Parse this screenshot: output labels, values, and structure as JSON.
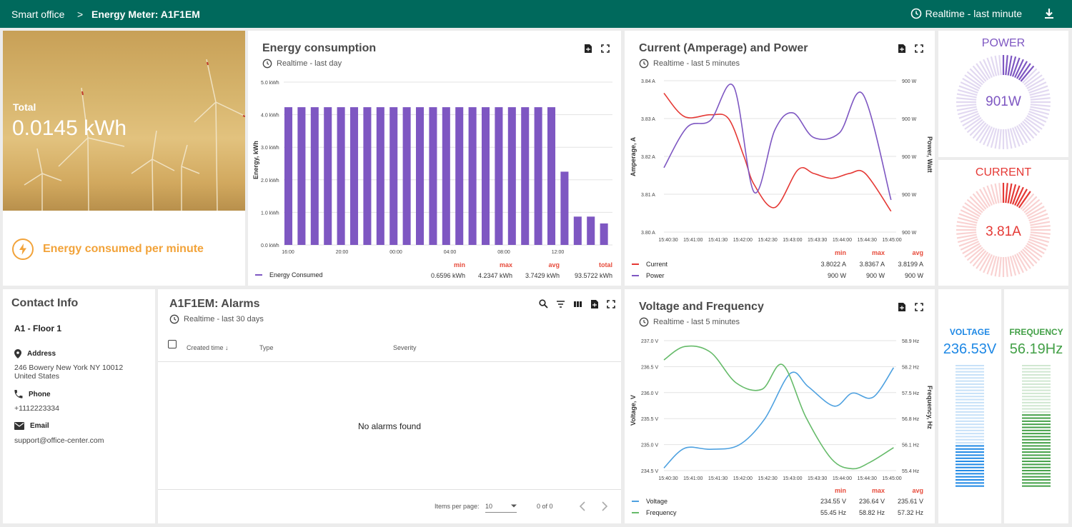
{
  "header": {
    "breadcrumb_home": "Smart office",
    "breadcrumb_sep": ">",
    "breadcrumb_current": "Energy Meter: A1F1EM",
    "timewindow": "Realtime - last minute"
  },
  "total": {
    "label": "Total",
    "value": "0.0145 kWh",
    "caption": "Energy consumed per minute"
  },
  "energy_chart": {
    "title": "Energy consumption",
    "timewindow": "Realtime - last day",
    "legend": {
      "name": "Energy Consumed",
      "min": "0.6596 kWh",
      "max": "4.2347 kWh",
      "avg": "3.7429 kWh",
      "total": "93.5722 kWh"
    },
    "headers": {
      "min": "min",
      "max": "max",
      "avg": "avg",
      "total": "total"
    }
  },
  "current_chart": {
    "title": "Current (Amperage) and Power",
    "timewindow": "Realtime - last 5 minutes",
    "headers": {
      "min": "min",
      "max": "max",
      "avg": "avg"
    },
    "legend": [
      {
        "name": "Current",
        "min": "3.8022 A",
        "max": "3.8367 A",
        "avg": "3.8199 A"
      },
      {
        "name": "Power",
        "min": "900 W",
        "max": "900 W",
        "avg": "900 W"
      }
    ]
  },
  "voltage_chart": {
    "title": "Voltage and Frequency",
    "timewindow": "Realtime - last 5 minutes",
    "headers": {
      "min": "min",
      "max": "max",
      "avg": "avg"
    },
    "legend": [
      {
        "name": "Voltage",
        "min": "234.55 V",
        "max": "236.64 V",
        "avg": "235.61 V"
      },
      {
        "name": "Frequency",
        "min": "55.45 Hz",
        "max": "58.82 Hz",
        "avg": "57.32 Hz"
      }
    ]
  },
  "gauges": {
    "power": {
      "title": "POWER",
      "value": "901W",
      "color": "#7e57c2"
    },
    "current": {
      "title": "CURRENT",
      "value": "3.81A",
      "color": "#e53935"
    }
  },
  "contact": {
    "title": "Contact Info",
    "location": "A1 - Floor 1",
    "address_label": "Address",
    "address_line1": "246 Bowery New York NY 10012",
    "address_line2": "United States",
    "phone_label": "Phone",
    "phone": "+1112223334",
    "email_label": "Email",
    "email": "support@office-center.com"
  },
  "alarms": {
    "title": "A1F1EM: Alarms",
    "timewindow": "Realtime - last 30 days",
    "columns": [
      "Created time ↓",
      "Type",
      "Severity"
    ],
    "empty_text": "No alarms found",
    "items_per_page_label": "Items per page:",
    "items_per_page": "10",
    "range_text": "0 of 0"
  },
  "bar_gauges": {
    "voltage": {
      "title": "VOLTAGE",
      "value": "236.53V",
      "color": "#1e88e5",
      "level": 0.35
    },
    "frequency": {
      "title": "FREQUENCY",
      "value": "56.19Hz",
      "color": "#43a047",
      "level": 0.6
    }
  },
  "chart_data": [
    {
      "type": "bar",
      "title": "Energy consumption",
      "ylabel": "Energy, kWh",
      "ylim": [
        0,
        5
      ],
      "yticks": [
        "0.0 kWh",
        "1.0 kWh",
        "2.0 kWh",
        "3.0 kWh",
        "4.0 kWh",
        "5.0 kWh"
      ],
      "xticks": [
        "16:00",
        "20:00",
        "00:00",
        "04:00",
        "08:00",
        "12:00"
      ],
      "series": [
        {
          "name": "Energy Consumed",
          "values": [
            4.23,
            4.23,
            4.23,
            4.23,
            4.23,
            4.23,
            4.23,
            4.23,
            4.23,
            4.23,
            4.23,
            4.23,
            4.23,
            4.23,
            4.23,
            4.23,
            4.23,
            4.23,
            4.23,
            4.23,
            4.23,
            2.25,
            0.87,
            0.87,
            0.66
          ]
        }
      ],
      "color": "#7e57c2"
    },
    {
      "type": "line",
      "title": "Current (Amperage) and Power",
      "ylabel": "Amperage, A",
      "y2label": "Power, Watt",
      "ylim": [
        3.8,
        3.84
      ],
      "yticks": [
        "3.80 A",
        "3.81 A",
        "3.82 A",
        "3.83 A",
        "3.84 A"
      ],
      "y2ticks": [
        "900 W",
        "900 W",
        "900 W",
        "900 W",
        "900 W"
      ],
      "xticks": [
        "15:40:30",
        "15:41:00",
        "15:41:30",
        "15:42:00",
        "15:42:30",
        "15:43:00",
        "15:43:30",
        "15:44:00",
        "15:44:30",
        "15:45:00"
      ],
      "series": [
        {
          "name": "Current",
          "color": "#e53935",
          "axis": "left",
          "x": [
            0,
            0.8,
            1.8,
            2.5,
            3.1,
            3.5,
            4.3,
            5.2,
            5.8,
            6.5,
            7.2,
            7.8,
            8.8
          ],
          "values": [
            3.8367,
            3.8305,
            3.831,
            3.83,
            3.82,
            3.8125,
            3.8065,
            3.8165,
            3.8155,
            3.8142,
            3.8155,
            3.8155,
            3.8055
          ]
        },
        {
          "name": "Power",
          "color": "#7e57c2",
          "axis": "left",
          "x": [
            0,
            0.9,
            1.8,
            2.7,
            3.5,
            4.3,
            5.0,
            5.8,
            6.8,
            7.7,
            8.8
          ],
          "values": [
            3.817,
            3.8277,
            3.8295,
            3.8385,
            3.8105,
            3.827,
            3.8315,
            3.825,
            3.8262,
            3.8365,
            3.8085
          ]
        }
      ]
    },
    {
      "type": "line",
      "title": "Voltage and Frequency",
      "ylabel": "Voltage, V",
      "y2label": "Frequency, Hz",
      "ylim": [
        234.5,
        237
      ],
      "yticks": [
        "234.5 V",
        "235.0 V",
        "235.5 V",
        "236.0 V",
        "236.5 V",
        "237.0 V"
      ],
      "y2ticks": [
        "55.4 Hz",
        "56.1 Hz",
        "56.8 Hz",
        "57.5 Hz",
        "58.2 Hz",
        "58.9 Hz"
      ],
      "xticks": [
        "15:40:30",
        "15:41:00",
        "15:41:30",
        "15:42:00",
        "15:42:30",
        "15:43:00",
        "15:43:30",
        "15:44:00",
        "15:44:30",
        "15:45:00"
      ],
      "series": [
        {
          "name": "Voltage",
          "color": "#4ea1e0",
          "axis": "left",
          "x": [
            0,
            0.8,
            1.8,
            2.9,
            3.9,
            4.9,
            5.6,
            6.6,
            7.3,
            8.1,
            8.9
          ],
          "values": [
            234.55,
            234.93,
            234.91,
            234.99,
            235.49,
            236.37,
            236.11,
            235.74,
            235.99,
            235.91,
            236.48
          ]
        },
        {
          "name": "Frequency",
          "color": "#66bb6a",
          "axis": "right",
          "x": [
            0,
            0.8,
            1.8,
            2.8,
            3.8,
            4.6,
            5.5,
            6.5,
            7.3,
            8.0,
            8.9
          ],
          "values": [
            58.38,
            58.74,
            58.59,
            57.76,
            57.59,
            58.25,
            56.84,
            55.71,
            55.45,
            55.63,
            56.02
          ]
        }
      ]
    }
  ]
}
